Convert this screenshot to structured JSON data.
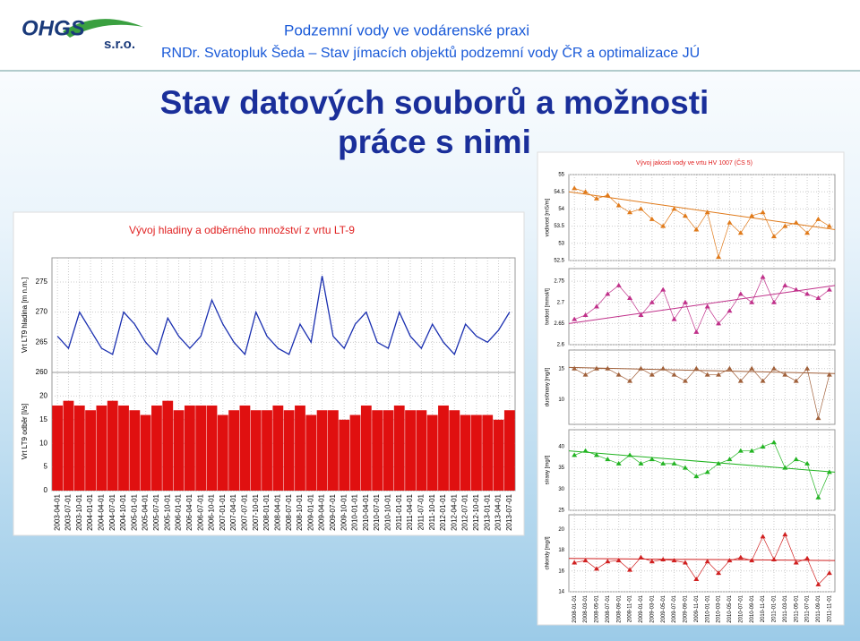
{
  "slide": {
    "logo": "OHGS",
    "logo_sub": "s.r.o.",
    "title": "Podzemní vody ve vodárenské praxi",
    "subtitle": "RNDr. Svatopluk Šeda – Stav jímacích objektů podzemní vody ČR a optimalizace JÚ",
    "heading": [
      "Stav datových souborů a možnosti",
      "práce s nimi"
    ]
  },
  "chart_data": [
    {
      "type": "panels",
      "title": "Vývoj hladiny a odběrného množství z vrtu LT-9",
      "categories": [
        "2003-04-01",
        "2003-07-01",
        "2003-10-01",
        "2004-01-01",
        "2004-04-01",
        "2004-07-01",
        "2004-10-01",
        "2005-01-01",
        "2005-04-01",
        "2005-07-01",
        "2005-10-01",
        "2006-01-01",
        "2006-04-01",
        "2006-07-01",
        "2006-10-01",
        "2007-01-01",
        "2007-04-01",
        "2007-07-01",
        "2007-10-01",
        "2008-01-01",
        "2008-04-01",
        "2008-07-01",
        "2008-10-01",
        "2009-01-01",
        "2009-04-01",
        "2009-07-01",
        "2009-10-01",
        "2010-01-01",
        "2010-04-01",
        "2010-07-01",
        "2010-10-01",
        "2011-01-01",
        "2011-04-01",
        "2011-07-01",
        "2011-10-01",
        "2012-01-01",
        "2012-04-01",
        "2012-07-01",
        "2012-10-01",
        "2013-01-01",
        "2013-04-01",
        "2013-07-01"
      ],
      "panels": [
        {
          "type": "line",
          "ylabel": "Vrt LT9 hladina [m n.m.]",
          "color": "#1a2fb0",
          "ylim": [
            260,
            279
          ],
          "yticks": [
            260,
            265,
            270,
            275
          ],
          "values": [
            266,
            264,
            270,
            267,
            264,
            263,
            270,
            268,
            265,
            263,
            269,
            266,
            264,
            266,
            272,
            268,
            265,
            263,
            270,
            266,
            264,
            263,
            268,
            265,
            276,
            266,
            264,
            268,
            270,
            265,
            264,
            270,
            266,
            264,
            268,
            265,
            263,
            268,
            266,
            265,
            267,
            270
          ]
        },
        {
          "type": "bar",
          "ylabel": "Vrt LT9 odběr [l/s]",
          "color": "#e01010",
          "ylim": [
            0,
            25
          ],
          "yticks": [
            0,
            5,
            10,
            15,
            20
          ],
          "values": [
            18,
            19,
            18,
            17,
            18,
            19,
            18,
            17,
            16,
            18,
            19,
            17,
            18,
            18,
            18,
            16,
            17,
            18,
            17,
            17,
            18,
            17,
            18,
            16,
            17,
            17,
            15,
            16,
            18,
            17,
            17,
            18,
            17,
            17,
            16,
            18,
            17,
            16,
            16,
            16,
            15,
            17
          ]
        }
      ]
    },
    {
      "type": "panels",
      "title": "Vývoj jakosti vody ve vrtu HV 1007 (ČS 5)",
      "categories": [
        "2008-01-01",
        "2008-03-01",
        "2008-05-01",
        "2008-07-01",
        "2008-09-01",
        "2008-11-01",
        "2009-01-01",
        "2009-03-01",
        "2009-05-01",
        "2009-07-01",
        "2009-09-01",
        "2009-11-01",
        "2010-01-01",
        "2010-03-01",
        "2010-05-01",
        "2010-07-01",
        "2010-09-01",
        "2010-11-01",
        "2011-01-01",
        "2011-03-01",
        "2011-05-01",
        "2011-07-01",
        "2011-09-01",
        "2011-11-01"
      ],
      "panels": [
        {
          "type": "scatter",
          "ylabel": "vodivost [mS/m]",
          "color": "#e07a1a",
          "ylim": [
            52.5,
            55
          ],
          "yticks": [
            52.5,
            53,
            53.5,
            54,
            54.5,
            55
          ],
          "trend": [
            54.5,
            53.4
          ],
          "values": [
            54.6,
            54.5,
            54.3,
            54.4,
            54.1,
            53.9,
            54.0,
            53.7,
            53.5,
            54.0,
            53.8,
            53.4,
            53.9,
            52.6,
            53.6,
            53.3,
            53.8,
            53.9,
            53.2,
            53.5,
            53.6,
            53.3,
            53.7,
            53.5
          ]
        },
        {
          "type": "scatter",
          "ylabel": "tvrdost [mmol/l]",
          "color": "#c0308a",
          "ylim": [
            2.6,
            2.78
          ],
          "yticks": [
            2.6,
            2.65,
            2.7,
            2.75
          ],
          "trend": [
            2.65,
            2.74
          ],
          "values": [
            2.66,
            2.67,
            2.69,
            2.72,
            2.74,
            2.71,
            2.67,
            2.7,
            2.73,
            2.66,
            2.7,
            2.63,
            2.69,
            2.65,
            2.68,
            2.72,
            2.7,
            2.76,
            2.7,
            2.74,
            2.73,
            2.72,
            2.71,
            2.73
          ]
        },
        {
          "type": "scatter",
          "ylabel": "dusičnany [mg/l]",
          "color": "#a0603a",
          "ylim": [
            6,
            18
          ],
          "yticks": [
            10,
            15
          ],
          "trend": [
            15.2,
            14.2
          ],
          "values": [
            15,
            14,
            15,
            15,
            14,
            13,
            15,
            14,
            15,
            14,
            13,
            15,
            14,
            14,
            15,
            13,
            15,
            13,
            15,
            14,
            13,
            15,
            7,
            14
          ]
        },
        {
          "type": "scatter",
          "ylabel": "sírany [mg/l]",
          "color": "#22b422",
          "ylim": [
            25,
            44
          ],
          "yticks": [
            25,
            30,
            35,
            40
          ],
          "trend": [
            39,
            34
          ],
          "values": [
            38,
            39,
            38,
            37,
            36,
            38,
            36,
            37,
            36,
            36,
            35,
            33,
            34,
            36,
            37,
            39,
            39,
            40,
            41,
            35,
            37,
            36,
            28,
            34
          ]
        },
        {
          "type": "scatter",
          "ylabel": "chloridy [mg/l]",
          "color": "#d02020",
          "ylim": [
            14,
            21.4
          ],
          "yticks": [
            14,
            16,
            18,
            20
          ],
          "trend": [
            17.2,
            17.0
          ],
          "values": [
            16.8,
            17,
            16.2,
            16.9,
            17,
            16.1,
            17.3,
            16.9,
            17.1,
            17,
            16.8,
            15.2,
            16.9,
            15.8,
            17,
            17.3,
            17,
            19.3,
            17.1,
            19.5,
            16.8,
            17.2,
            14.7,
            15.8
          ]
        }
      ]
    }
  ]
}
